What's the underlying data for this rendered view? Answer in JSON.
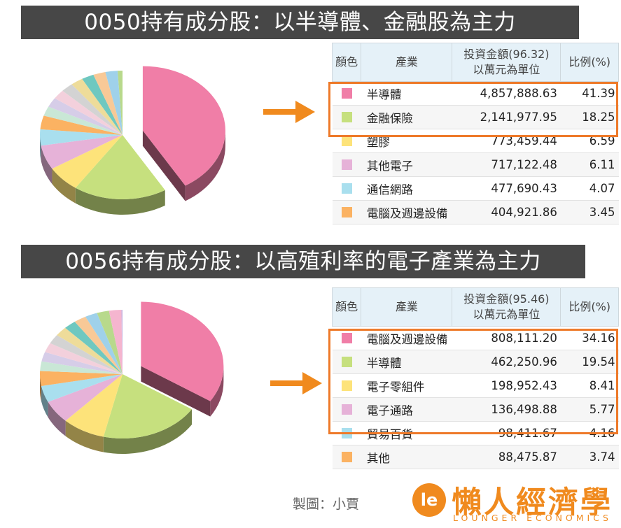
{
  "banners": {
    "top": "0050持有成分股：以半導體、金融股為主力",
    "bottom": "0056持有成分股：以高殖利率的電子產業為主力"
  },
  "headers": {
    "color": "顏色",
    "industry": "產業",
    "amount1_line1": "投資金額(96.32)",
    "amount2_line1": "投資金額(95.46)",
    "amount_line2": "以萬元為單位",
    "ratio": "比例(%)"
  },
  "chart_data": [
    {
      "type": "pie",
      "title": "",
      "slices": [
        {
          "label": "半導體",
          "amount": "4,857,888.63",
          "value": 41.39,
          "color": "#f07ea7",
          "exploded": true
        },
        {
          "label": "金融保險",
          "amount": "2,141,977.95",
          "value": 18.25,
          "color": "#c6e07e"
        },
        {
          "label": "塑膠",
          "amount": "773,459.44",
          "value": 6.59,
          "color": "#fde37a"
        },
        {
          "label": "其他電子",
          "amount": "717,122.48",
          "value": 6.11,
          "color": "#e6b2d8"
        },
        {
          "label": "通信網路",
          "amount": "477,690.43",
          "value": 4.07,
          "color": "#a9dfee"
        },
        {
          "label": "電腦及週邊設備",
          "amount": "404,921.86",
          "value": 3.45,
          "color": "#fbb262"
        }
      ]
    },
    {
      "type": "pie",
      "title": "",
      "slices": [
        {
          "label": "電腦及週邊設備",
          "amount": "808,111.20",
          "value": 34.16,
          "color": "#f07ea7",
          "exploded": true
        },
        {
          "label": "半導體",
          "amount": "462,250.96",
          "value": 19.54,
          "color": "#c6e07e"
        },
        {
          "label": "電子零組件",
          "amount": "198,952.43",
          "value": 8.41,
          "color": "#fde37a"
        },
        {
          "label": "電子通路",
          "amount": "136,498.88",
          "value": 5.77,
          "color": "#e6b2d8"
        },
        {
          "label": "貿易百貨",
          "amount": "98,411.67",
          "value": 4.16,
          "color": "#a9dfee"
        },
        {
          "label": "其他",
          "amount": "88,475.87",
          "value": 3.74,
          "color": "#fbb262"
        }
      ]
    }
  ],
  "credit": "製圖：小賈",
  "logo": {
    "mark": "le",
    "chinese": "懶人經濟學",
    "english": "LOUNGER ECONOMICS",
    "color": "#f08a1e"
  },
  "colors": {
    "highlight": "#ee7a2a",
    "arrow": "#f08a1e",
    "banner": "#474747",
    "header_bg": "#e5f1f8"
  }
}
